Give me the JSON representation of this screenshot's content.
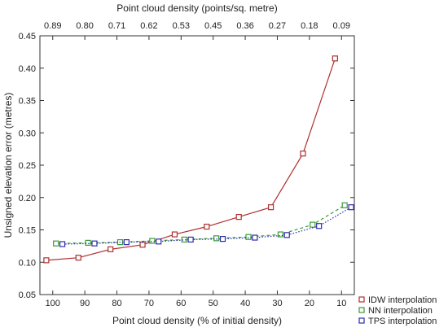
{
  "chart_data": {
    "type": "line",
    "xlabel": "Point cloud density (% of initial density)",
    "ylabel": "Unsigned elevation error (metres)",
    "top_xlabel": "Point cloud density (points/sq. metre)",
    "xlim": [
      104,
      6
    ],
    "ylim": [
      0.05,
      0.45
    ],
    "x_ticks": [
      100,
      90,
      80,
      70,
      60,
      50,
      40,
      30,
      20,
      10
    ],
    "x_tick_labels": [
      "100",
      "90",
      "80",
      "70",
      "60",
      "50",
      "40",
      "30",
      "20",
      "10"
    ],
    "top_ticks": [
      100,
      90,
      80,
      70,
      60,
      50,
      40,
      30,
      20,
      10
    ],
    "top_tick_labels": [
      "0.89",
      "0.80",
      "0.71",
      "0.62",
      "0.53",
      "0.45",
      "0.36",
      "0.27",
      "0.18",
      "0.09"
    ],
    "y_ticks": [
      0.05,
      0.1,
      0.15,
      0.2,
      0.25,
      0.3,
      0.35,
      0.4,
      0.45
    ],
    "y_tick_labels": [
      "0.05",
      "0.10",
      "0.15",
      "0.20",
      "0.25",
      "0.30",
      "0.35",
      "0.40",
      "0.45"
    ],
    "legend_position": "bottom-right, outside plot",
    "series": [
      {
        "name": "IDW interpolation",
        "color": "#b03030",
        "dash": "solid",
        "x": [
          102,
          92,
          82,
          72,
          62,
          52,
          42,
          32,
          22,
          12
        ],
        "y": [
          0.103,
          0.107,
          0.12,
          0.127,
          0.143,
          0.155,
          0.17,
          0.185,
          0.268,
          0.415
        ]
      },
      {
        "name": "NN interpolation",
        "color": "#3a9a3a",
        "dash": "4,3",
        "x": [
          99,
          89,
          79,
          69,
          59,
          49,
          39,
          29,
          19,
          9
        ],
        "y": [
          0.129,
          0.13,
          0.131,
          0.133,
          0.135,
          0.137,
          0.139,
          0.143,
          0.158,
          0.188
        ]
      },
      {
        "name": "TPS interpolation",
        "color": "#2c2cb0",
        "dash": "1.5,2",
        "x": [
          97,
          87,
          77,
          67,
          57,
          47,
          37,
          27,
          17,
          7
        ],
        "y": [
          0.128,
          0.129,
          0.131,
          0.132,
          0.135,
          0.136,
          0.138,
          0.142,
          0.156,
          0.185
        ]
      }
    ]
  }
}
